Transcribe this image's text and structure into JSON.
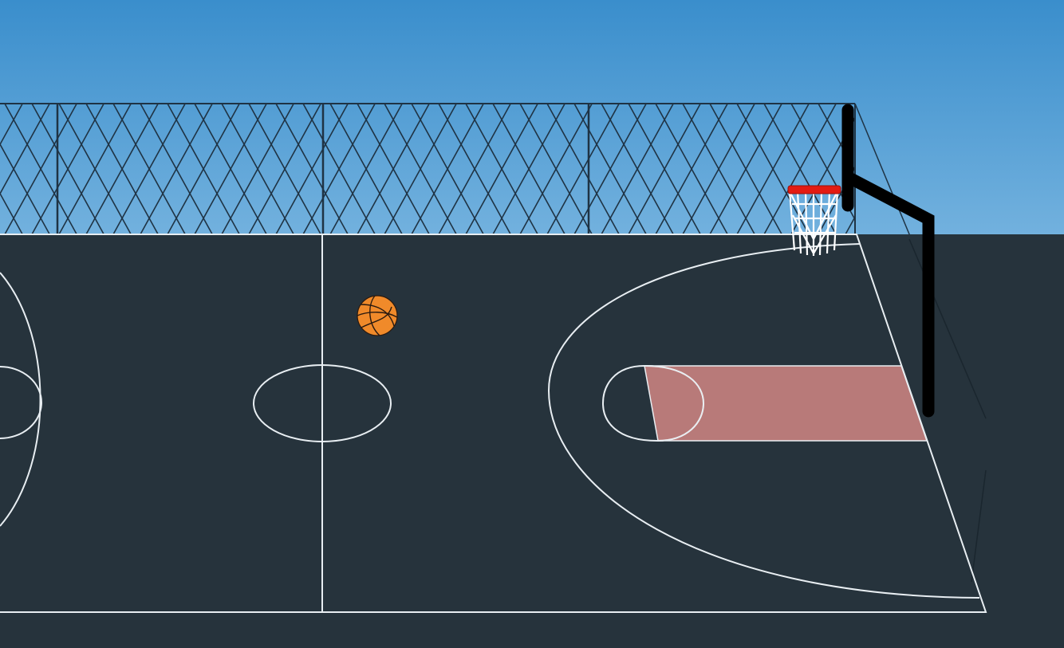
{
  "scene": {
    "title": "",
    "sky_top_color": "#3A8ECC",
    "sky_bottom_color": "#72B1DE",
    "ground_color": "#26333C",
    "court_line_color": "#E8EEF2",
    "fence_line_color": "#1F3344",
    "paint_color": "#D98A86",
    "rim_color": "#E31B12",
    "net_color": "#FFFFFF",
    "pole_color": "#000000",
    "ball_color": "#F08A2A",
    "ball_seam_color": "#2A1A10"
  },
  "objects": {
    "ball": "basketball-icon",
    "hoop": "basketball-hoop",
    "fence": "chain-link-fence"
  }
}
